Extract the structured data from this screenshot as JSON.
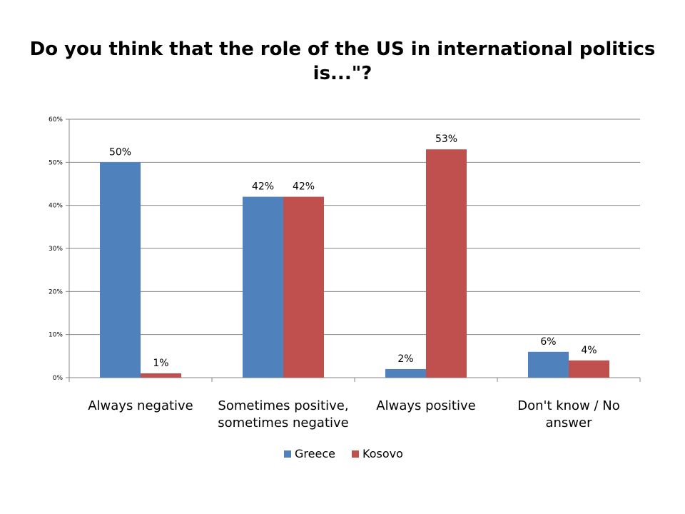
{
  "chart_data": {
    "type": "bar",
    "title_lines": [
      "Do you think that the role of the US in international politics",
      "is...\"?"
    ],
    "categories": [
      [
        "Always negative"
      ],
      [
        "Sometimes positive,",
        "sometimes negative"
      ],
      [
        "Always positive"
      ],
      [
        "Don't know / No",
        "answer"
      ]
    ],
    "series": [
      {
        "name": "Greece",
        "values": [
          50,
          42,
          2,
          6
        ],
        "labels": [
          "50%",
          "42%",
          "2%",
          "6%"
        ],
        "color": "#4F81BD"
      },
      {
        "name": "Kosovo",
        "values": [
          1,
          42,
          53,
          4
        ],
        "labels": [
          "1%",
          "42%",
          "53%",
          "4%"
        ],
        "color": "#C0504D"
      }
    ],
    "yticks": [
      "0%",
      "10%",
      "20%",
      "30%",
      "40%",
      "50%",
      "60%"
    ],
    "ylim": [
      0,
      60
    ],
    "grid": true,
    "legend_position": "bottom"
  }
}
